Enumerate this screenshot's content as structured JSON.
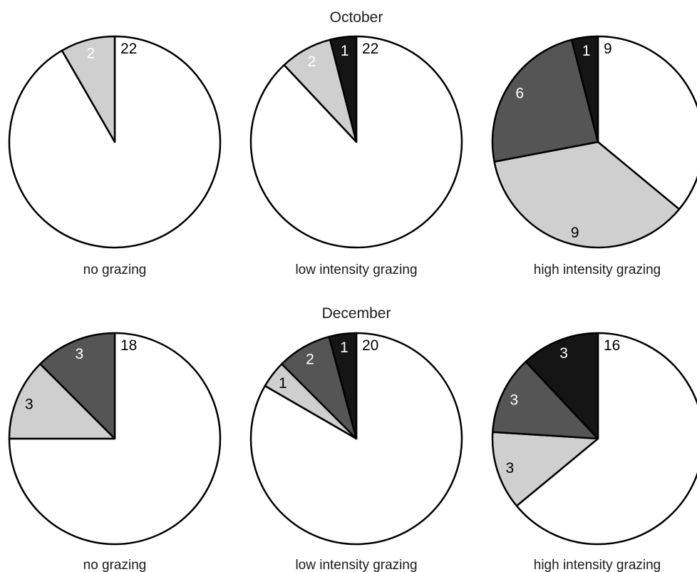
{
  "chart_data": [
    {
      "type": "pie",
      "title": "October",
      "caption": "no grazing",
      "slices": [
        {
          "value": 22,
          "label": "22",
          "color": "#ffffff",
          "label_color": "#000000"
        },
        {
          "value": 2,
          "label": "2",
          "color": "#cfcfcf",
          "label_color": "#ffffff"
        }
      ]
    },
    {
      "type": "pie",
      "title": "",
      "caption": "low intensity grazing",
      "slices": [
        {
          "value": 22,
          "label": "22",
          "color": "#ffffff",
          "label_color": "#000000"
        },
        {
          "value": 2,
          "label": "2",
          "color": "#cfcfcf",
          "label_color": "#ffffff"
        },
        {
          "value": 1,
          "label": "1",
          "color": "#151515",
          "label_color": "#ffffff"
        }
      ]
    },
    {
      "type": "pie",
      "title": "",
      "caption": "high intensity grazing",
      "slices": [
        {
          "value": 9,
          "label": "9",
          "color": "#ffffff",
          "label_color": "#000000"
        },
        {
          "value": 9,
          "label": "9",
          "color": "#cfcfcf",
          "label_color": "#000000"
        },
        {
          "value": 6,
          "label": "6",
          "color": "#555555",
          "label_color": "#ffffff"
        },
        {
          "value": 1,
          "label": "1",
          "color": "#151515",
          "label_color": "#ffffff"
        }
      ]
    },
    {
      "type": "pie",
      "title": "December",
      "caption": "no grazing",
      "slices": [
        {
          "value": 18,
          "label": "18",
          "color": "#ffffff",
          "label_color": "#000000"
        },
        {
          "value": 3,
          "label": "3",
          "color": "#cfcfcf",
          "label_color": "#000000"
        },
        {
          "value": 3,
          "label": "3",
          "color": "#555555",
          "label_color": "#ffffff"
        }
      ]
    },
    {
      "type": "pie",
      "title": "",
      "caption": "low intensity grazing",
      "slices": [
        {
          "value": 20,
          "label": "20",
          "color": "#ffffff",
          "label_color": "#000000"
        },
        {
          "value": 1,
          "label": "1",
          "color": "#cfcfcf",
          "label_color": "#000000"
        },
        {
          "value": 2,
          "label": "2",
          "color": "#555555",
          "label_color": "#ffffff"
        },
        {
          "value": 1,
          "label": "1",
          "color": "#151515",
          "label_color": "#ffffff"
        }
      ]
    },
    {
      "type": "pie",
      "title": "",
      "caption": "high intensity grazing",
      "slices": [
        {
          "value": 16,
          "label": "16",
          "color": "#ffffff",
          "label_color": "#000000"
        },
        {
          "value": 3,
          "label": "3",
          "color": "#cfcfcf",
          "label_color": "#000000"
        },
        {
          "value": 3,
          "label": "3",
          "color": "#555555",
          "label_color": "#ffffff"
        },
        {
          "value": 3,
          "label": "3",
          "color": "#151515",
          "label_color": "#ffffff"
        }
      ]
    }
  ]
}
